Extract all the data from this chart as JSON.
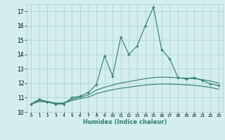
{
  "xlabel": "Humidex (Indice chaleur)",
  "x": [
    0,
    1,
    2,
    3,
    4,
    5,
    6,
    7,
    8,
    9,
    10,
    11,
    12,
    13,
    14,
    15,
    16,
    17,
    18,
    19,
    20,
    21,
    22,
    23
  ],
  "line1": [
    10.55,
    10.9,
    10.7,
    10.55,
    10.55,
    11.0,
    11.1,
    11.35,
    11.9,
    13.9,
    12.5,
    15.2,
    14.0,
    14.6,
    16.0,
    17.3,
    14.35,
    13.7,
    12.4,
    12.3,
    12.4,
    12.2,
    11.95,
    11.85
  ],
  "line2": [
    10.55,
    10.8,
    10.73,
    10.62,
    10.63,
    10.88,
    11.03,
    11.18,
    11.52,
    11.72,
    11.87,
    12.02,
    12.12,
    12.22,
    12.32,
    12.4,
    12.43,
    12.41,
    12.38,
    12.35,
    12.32,
    12.25,
    12.15,
    12.02
  ],
  "line3": [
    10.55,
    10.73,
    10.7,
    10.6,
    10.6,
    10.8,
    10.93,
    11.03,
    11.27,
    11.42,
    11.55,
    11.65,
    11.73,
    11.8,
    11.87,
    11.92,
    11.95,
    11.94,
    11.92,
    11.89,
    11.85,
    11.79,
    11.71,
    11.59
  ],
  "color": "#2e7d6e",
  "bg_color": "#d4eeee",
  "grid_color": "#aacece",
  "ylim": [
    10.0,
    17.5
  ],
  "xlim": [
    -0.5,
    23.5
  ],
  "yticks": [
    10,
    11,
    12,
    13,
    14,
    15,
    16,
    17
  ],
  "xtick_labels": [
    "0",
    "1",
    "2",
    "3",
    "4",
    "5",
    "6",
    "7",
    "8",
    "9",
    "10",
    "11",
    "12",
    "13",
    "14",
    "15",
    "16",
    "17",
    "18",
    "19",
    "20",
    "21",
    "22",
    "23"
  ]
}
